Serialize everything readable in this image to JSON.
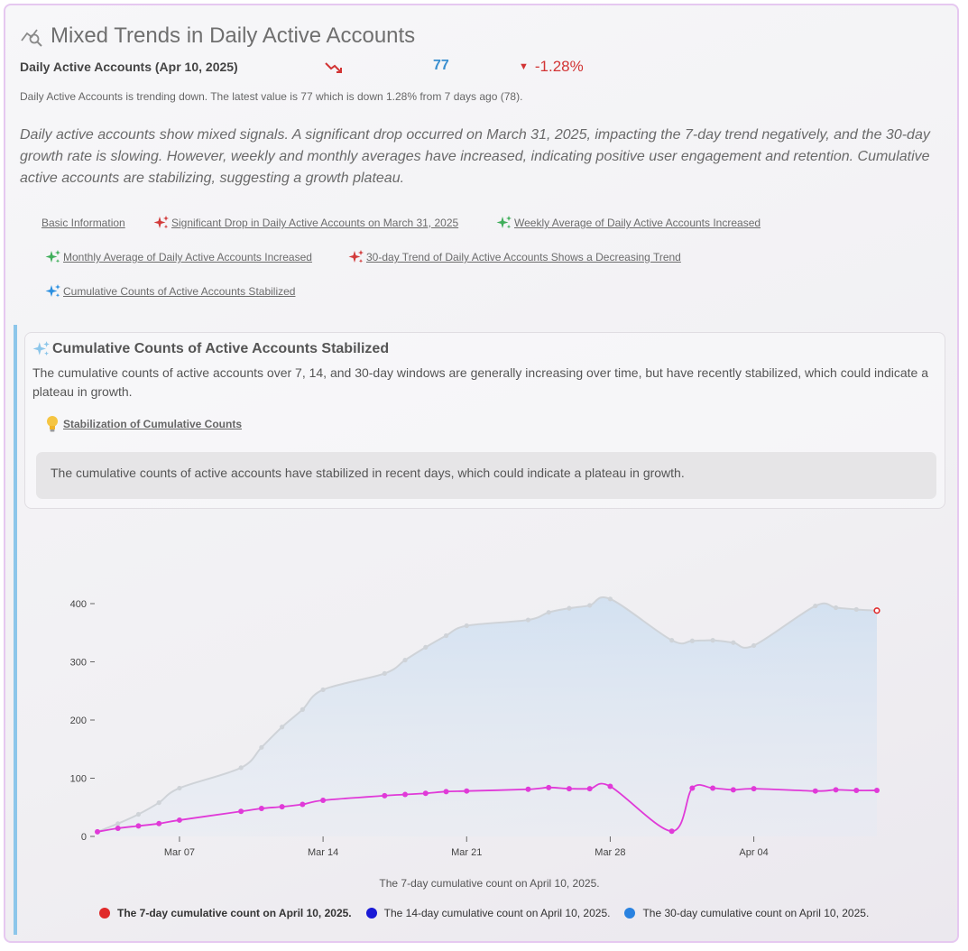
{
  "header": {
    "title": "Mixed Trends in Daily Active Accounts",
    "icon": "chart-search-icon"
  },
  "metric": {
    "name": "Daily Active Accounts (Apr 10, 2025)",
    "trend_icon": "trend-down-icon",
    "value": "77",
    "change": "-1.28%",
    "value_color": "#3a8fd0",
    "change_color": "#d23434",
    "summary": "Daily Active Accounts is trending down. The latest value is 77 which is down 1.28% from 7 days ago (78)."
  },
  "narrative": "Daily active accounts show mixed signals. A significant drop occurred on March 31, 2025, impacting the 7-day trend negatively, and the 30-day growth rate is slowing. However, weekly and monthly averages have increased, indicating positive user engagement and retention. Cumulative active accounts are stabilizing, suggesting a growth plateau.",
  "links": [
    {
      "label": "Basic Information",
      "icon": "none"
    },
    {
      "label": "Significant Drop in Daily Active Accounts on March 31, 2025",
      "icon": "sparkle-red-icon",
      "color": "#d23a3a"
    },
    {
      "label": "Weekly Average of Daily Active Accounts Increased",
      "icon": "sparkle-green-icon",
      "color": "#3fae5a"
    },
    {
      "label": "Monthly Average of Daily Active Accounts Increased",
      "icon": "sparkle-green-icon",
      "color": "#3fae5a"
    },
    {
      "label": "30-day Trend of Daily Active Accounts Shows a Decreasing Trend",
      "icon": "sparkle-red-icon",
      "color": "#d23a3a"
    },
    {
      "label": "Cumulative Counts of Active Accounts Stabilized",
      "icon": "sparkle-blue-icon",
      "color": "#2b8fe0"
    }
  ],
  "insight": {
    "title": "Cumulative Counts of Active Accounts Stabilized",
    "description": "The cumulative counts of active accounts over 7, 14, and 30-day windows are generally increasing over time, but have recently stabilized, which could indicate a plateau in growth.",
    "sub_title": "Stabilization of Cumulative Counts",
    "sub_note": "The cumulative counts of active accounts have stabilized in recent days, which could indicate a plateau in growth."
  },
  "chart_data": {
    "type": "line",
    "caption": "The 7-day cumulative count on April 10, 2025.",
    "x_ticks": [
      "Mar 07",
      "Mar 14",
      "Mar 21",
      "Mar 28",
      "Apr 04"
    ],
    "x_tick_days": [
      7,
      14,
      21,
      28,
      35
    ],
    "ylim": [
      0,
      400
    ],
    "y_ticks": [
      0,
      100,
      200,
      300,
      400
    ],
    "grid": false,
    "legend_position": "bottom",
    "series": [
      {
        "name": "The 7-day cumulative count on April 10, 2025.",
        "color": "#e02a2a",
        "line_color": "#e03ad8",
        "days": [
          3,
          4,
          5,
          6,
          7,
          10,
          11,
          12,
          13,
          14,
          17,
          18,
          19,
          20,
          21,
          24,
          25,
          26,
          27,
          28,
          31,
          32,
          33,
          34,
          35,
          38,
          39,
          40,
          41
        ],
        "values": [
          8,
          14,
          18,
          22,
          28,
          43,
          48,
          51,
          55,
          62,
          70,
          72,
          74,
          77,
          78,
          81,
          84,
          82,
          82,
          86,
          9,
          83,
          83,
          80,
          82,
          78,
          80,
          79,
          79
        ]
      },
      {
        "name": "The 14-day cumulative count on April 10, 2025.",
        "color": "#1a1ad6"
      },
      {
        "name": "The 30-day cumulative count on April 10, 2025.",
        "color": "#2a82e0",
        "days": [
          3,
          4,
          5,
          6,
          7,
          10,
          11,
          12,
          13,
          14,
          17,
          18,
          19,
          20,
          21,
          24,
          25,
          26,
          27,
          28,
          31,
          32,
          33,
          34,
          35,
          38,
          39,
          40,
          41
        ],
        "values": [
          8,
          22,
          38,
          58,
          83,
          118,
          153,
          188,
          218,
          252,
          280,
          303,
          325,
          345,
          362,
          372,
          385,
          392,
          397,
          408,
          337,
          336,
          337,
          333,
          328,
          396,
          393,
          390,
          388
        ]
      }
    ],
    "active_series": 0
  }
}
